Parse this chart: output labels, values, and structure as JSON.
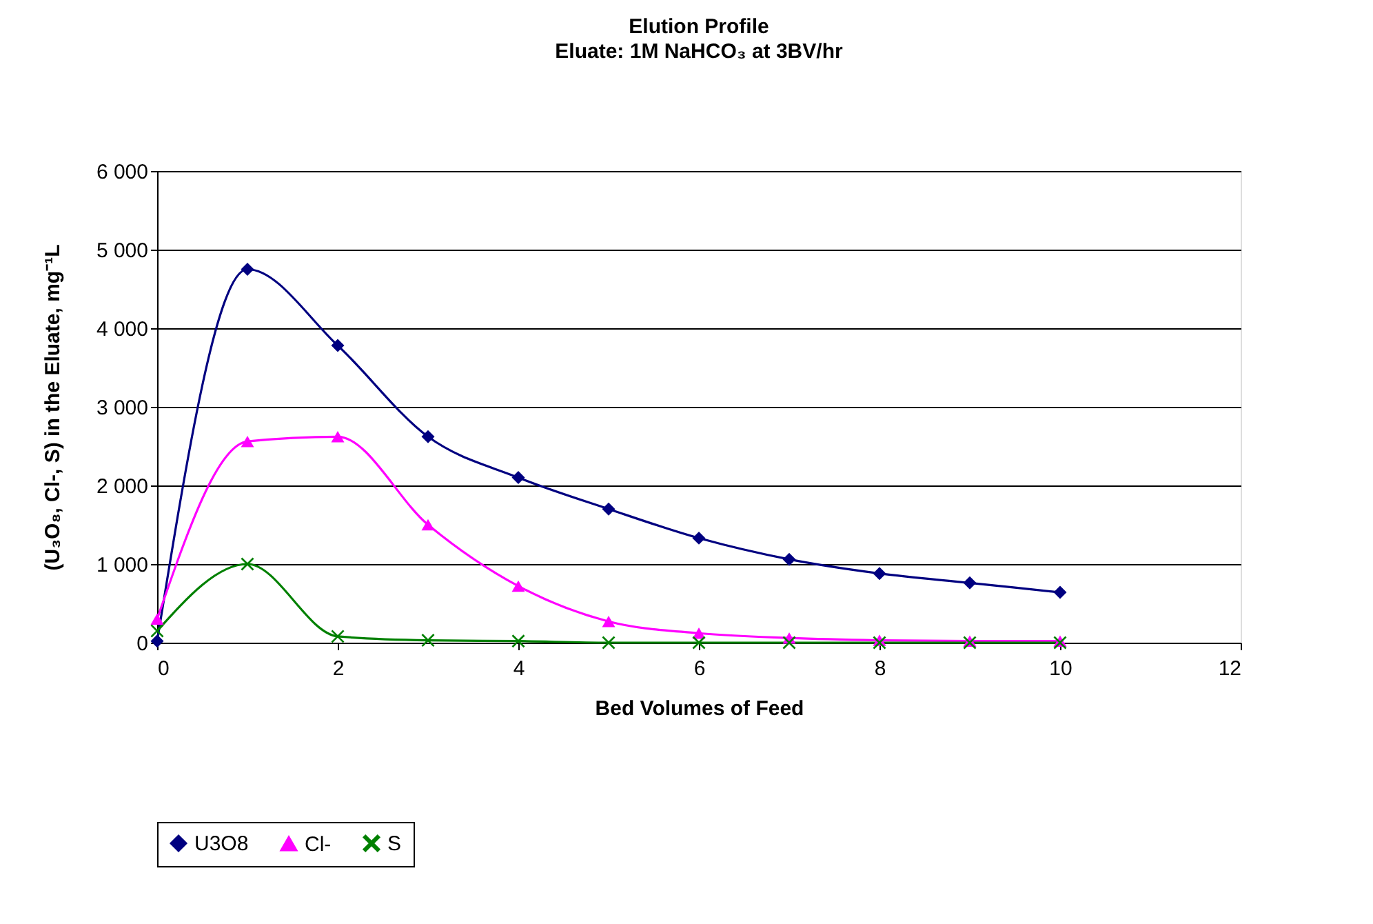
{
  "chart_data": {
    "type": "line",
    "title": "Elution Profile",
    "subtitle": "Eluate: 1M NaHCO₃ at 3BV/hr",
    "xlabel": "Bed Volumes of Feed",
    "ylabel": "(U₃O₈, Cl-, S) in the Eluate, mg⁻¹L",
    "x": [
      0,
      1,
      2,
      3,
      4,
      5,
      6,
      7,
      8,
      9,
      10
    ],
    "series": [
      {
        "name": "U3O8",
        "color": "#000080",
        "marker": "diamond",
        "values": [
          20,
          4750,
          3780,
          2620,
          2100,
          1700,
          1330,
          1060,
          880,
          760,
          640
        ]
      },
      {
        "name": "Cl-",
        "color": "#ff00ff",
        "marker": "triangle",
        "values": [
          300,
          2560,
          2620,
          1500,
          720,
          270,
          120,
          60,
          30,
          20,
          20
        ]
      },
      {
        "name": "S",
        "color": "#008000",
        "marker": "cross",
        "values": [
          150,
          1000,
          80,
          30,
          20,
          0,
          0,
          0,
          0,
          0,
          0
        ]
      }
    ],
    "xlim": [
      0,
      12
    ],
    "xticks": [
      0,
      2,
      4,
      6,
      8,
      10,
      12
    ],
    "ylim": [
      0,
      6000
    ],
    "yticks": [
      0,
      {
        "value": 1000,
        "label": "1 000"
      },
      {
        "value": 2000,
        "label": "2 000"
      },
      {
        "value": 3000,
        "label": "3 000"
      },
      {
        "value": 4000,
        "label": "4 000"
      },
      {
        "value": 5000,
        "label": "5 000"
      },
      {
        "value": 6000,
        "label": "6 000"
      }
    ],
    "grid": "y",
    "legend": "bottom",
    "line_style": "solid"
  }
}
